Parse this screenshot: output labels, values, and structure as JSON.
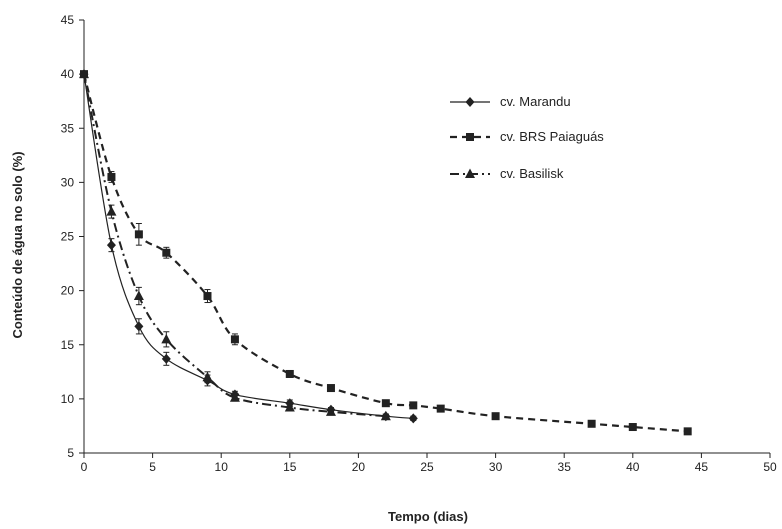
{
  "chart_data": {
    "type": "line",
    "title": "",
    "xlabel": "Tempo (dias)",
    "ylabel": "Conteúdo de água no solo (%)",
    "xlim": [
      0,
      50
    ],
    "ylim": [
      5,
      45
    ],
    "xticks": [
      "0",
      "5",
      "10",
      "15",
      "20",
      "25",
      "30",
      "35",
      "40",
      "45",
      "50"
    ],
    "yticks": [
      "5",
      "10",
      "15",
      "20",
      "25",
      "30",
      "35",
      "40",
      "45"
    ],
    "grid": false,
    "legend_position": "top-right",
    "series": [
      {
        "name": "cv. Marandu",
        "marker": "diamond",
        "line_style": "solid",
        "color": "#222222",
        "x": [
          0,
          2,
          4,
          6,
          9,
          11,
          15,
          18,
          22,
          24
        ],
        "y": [
          40,
          24.2,
          16.7,
          13.7,
          11.7,
          10.4,
          9.6,
          9.0,
          8.4,
          8.2
        ],
        "err": [
          0,
          0.6,
          0.7,
          0.6,
          0.5,
          0.3,
          0.3,
          0.2,
          0.2,
          0.2
        ]
      },
      {
        "name": "cv. BRS Paiaguás",
        "marker": "square",
        "line_style": "dashed",
        "color": "#222222",
        "x": [
          0,
          2,
          4,
          6,
          9,
          11,
          15,
          18,
          22,
          24,
          26,
          30,
          37,
          40,
          44
        ],
        "y": [
          40,
          30.5,
          25.2,
          23.5,
          19.5,
          15.5,
          12.3,
          11.0,
          9.6,
          9.4,
          9.1,
          8.4,
          7.7,
          7.4,
          7.0
        ],
        "err": [
          0,
          0.5,
          1.0,
          0.5,
          0.6,
          0.5,
          0.3,
          0.2,
          0.2,
          0.2,
          0.2,
          0.2,
          0.2,
          0.2,
          0.2
        ]
      },
      {
        "name": "cv. Basilisk",
        "marker": "triangle",
        "line_style": "dashdot",
        "color": "#222222",
        "x": [
          0,
          2,
          4,
          6,
          9,
          11,
          15,
          18,
          22
        ],
        "y": [
          40,
          27.3,
          19.5,
          15.5,
          12.0,
          10.1,
          9.2,
          8.8,
          8.4
        ],
        "err": [
          0,
          0.6,
          0.8,
          0.7,
          0.5,
          0.3,
          0.2,
          0.2,
          0.2
        ]
      }
    ]
  }
}
